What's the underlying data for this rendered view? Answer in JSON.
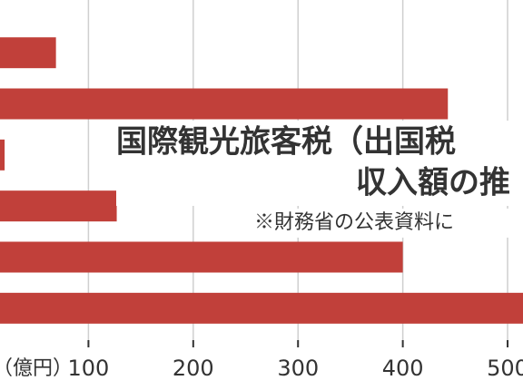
{
  "chart_data": {
    "type": "hbar",
    "title": "国際観光旅客税（出国税",
    "subtitle": "収入額の推",
    "note": "※財務省の公表資料に",
    "x_label": "（億円）",
    "categories": [
      null,
      null,
      null,
      null,
      null,
      null
    ],
    "values": [
      69,
      443,
      20,
      127,
      400,
      525
    ],
    "color": "#c1403a",
    "xlim": [
      15.6,
      514.7
    ],
    "xticks": [
      100,
      200,
      300,
      400,
      500
    ],
    "grid": true
  }
}
